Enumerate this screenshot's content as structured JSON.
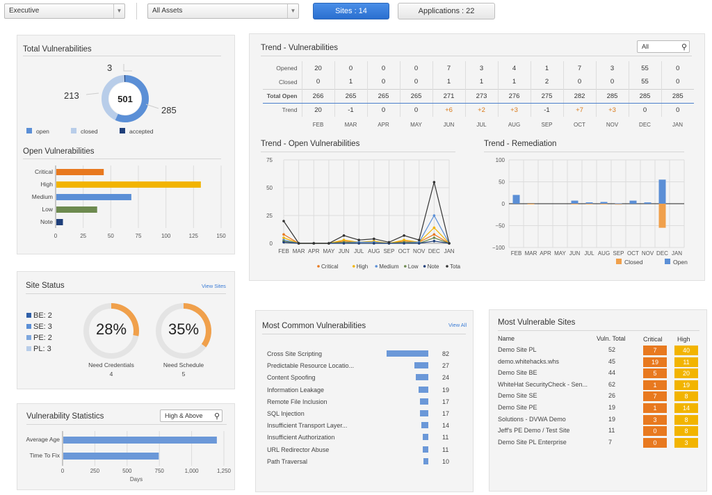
{
  "topbar": {
    "role_select": "Executive",
    "assets_select": "All Assets",
    "sites_button": "Sites : 14",
    "apps_button": "Applications : 22"
  },
  "total_vulns": {
    "title": "Total Vulnerabilities",
    "total": "501",
    "open": "285",
    "closed": "213",
    "accepted": "3",
    "legend": [
      "open",
      "closed",
      "accepted"
    ],
    "colors": {
      "open": "#5b8fd6",
      "closed": "#b8cde9",
      "accepted": "#1f3f7a"
    }
  },
  "open_vulns": {
    "title": "Open Vulnerabilities",
    "categories": [
      "Critical",
      "High",
      "Medium",
      "Low",
      "Note"
    ],
    "values": [
      43,
      131,
      68,
      37,
      6
    ],
    "colors": [
      "#e8791f",
      "#f2b400",
      "#5b8fd6",
      "#6d8a4f",
      "#1f3f7a"
    ],
    "ticks": [
      "0",
      "25",
      "50",
      "75",
      "100",
      "125",
      "150"
    ]
  },
  "site_status": {
    "title": "Site Status",
    "link": "View Sites",
    "items": [
      "BE: 2",
      "SE: 3",
      "PE: 2",
      "PL: 3"
    ],
    "item_colors": [
      "#2f5fa8",
      "#5b8fd6",
      "#7ea7de",
      "#b8cde9"
    ],
    "credentials": {
      "pct": "28%",
      "label": "Need Credentials",
      "count": "4",
      "value": 0.28
    },
    "schedule": {
      "pct": "35%",
      "label": "Need Schedule",
      "count": "5",
      "value": 0.35
    }
  },
  "vuln_stats": {
    "title": "Vulnerability Statistics",
    "filter": "High & Above",
    "categories": [
      "Average Age",
      "Time To Fix"
    ],
    "values": [
      1190,
      740
    ],
    "ticks": [
      "0",
      "250",
      "500",
      "750",
      "1,000",
      "1,250"
    ],
    "xlabel": "Days"
  },
  "trend_vulns": {
    "title": "Trend - Vulnerabilities",
    "filter": "All",
    "row_labels": [
      "Opened",
      "Closed",
      "Total Open",
      "Trend"
    ],
    "months": [
      "FEB",
      "MAR",
      "APR",
      "MAY",
      "JUN",
      "JUL",
      "AUG",
      "SEP",
      "OCT",
      "NOV",
      "DEC",
      "JAN"
    ],
    "opened": [
      "20",
      "0",
      "0",
      "0",
      "7",
      "3",
      "4",
      "1",
      "7",
      "3",
      "55",
      "0"
    ],
    "closed": [
      "0",
      "1",
      "0",
      "0",
      "1",
      "1",
      "1",
      "2",
      "0",
      "0",
      "55",
      "0"
    ],
    "total_open": [
      "266",
      "265",
      "265",
      "265",
      "271",
      "273",
      "276",
      "275",
      "282",
      "285",
      "285",
      "285"
    ],
    "trend": [
      "20",
      "-1",
      "0",
      "0",
      "+6",
      "+2",
      "+3",
      "-1",
      "+7",
      "+3",
      "0",
      "0"
    ]
  },
  "chart_data": [
    {
      "type": "line",
      "title": "Trend - Open Vulnerabilities",
      "x": [
        "FEB",
        "MAR",
        "APR",
        "MAY",
        "JUN",
        "JUL",
        "AUG",
        "SEP",
        "OCT",
        "NOV",
        "DEC",
        "JAN"
      ],
      "ylim": [
        0,
        75
      ],
      "yticks": [
        "0",
        "25",
        "50",
        "75"
      ],
      "series": [
        {
          "name": "Critical",
          "color": "#e8791f",
          "values": [
            8,
            0,
            0,
            0,
            2,
            1,
            1,
            0,
            2,
            1,
            8,
            0
          ]
        },
        {
          "name": "High",
          "color": "#f2b400",
          "values": [
            5,
            0,
            0,
            0,
            3,
            1,
            2,
            0,
            3,
            1,
            14,
            0
          ]
        },
        {
          "name": "Medium",
          "color": "#5b8fd6",
          "values": [
            3,
            0,
            0,
            0,
            1,
            1,
            1,
            0,
            1,
            1,
            25,
            0
          ]
        },
        {
          "name": "Low",
          "color": "#6d8a4f",
          "values": [
            2,
            0,
            0,
            0,
            1,
            0,
            0,
            0,
            1,
            0,
            5,
            0
          ]
        },
        {
          "name": "Note",
          "color": "#1f3f7a",
          "values": [
            1,
            0,
            0,
            0,
            0,
            0,
            0,
            0,
            0,
            0,
            2,
            0
          ]
        },
        {
          "name": "Total",
          "color": "#333333",
          "values": [
            20,
            0,
            0,
            0,
            7,
            3,
            4,
            1,
            7,
            3,
            55,
            0
          ]
        }
      ]
    },
    {
      "type": "bar",
      "title": "Trend - Remediation",
      "categories": [
        "FEB",
        "MAR",
        "APR",
        "MAY",
        "JUN",
        "JUL",
        "AUG",
        "SEP",
        "OCT",
        "NOV",
        "DEC",
        "JAN"
      ],
      "ylim": [
        -100,
        100
      ],
      "yticks": [
        "100",
        "50",
        "0",
        "−50",
        "−100"
      ],
      "series": [
        {
          "name": "Closed",
          "color": "#f0a04b",
          "values": [
            0,
            -1,
            0,
            0,
            -1,
            -1,
            -1,
            -2,
            0,
            0,
            -55,
            0
          ]
        },
        {
          "name": "Open",
          "color": "#5b8fd6",
          "values": [
            20,
            0,
            0,
            0,
            7,
            3,
            4,
            1,
            7,
            3,
            55,
            0
          ]
        }
      ]
    }
  ],
  "common_vulns": {
    "title": "Most Common Vulnerabilities",
    "link": "View All",
    "names": [
      "Cross Site Scripting",
      "Predictable Resource Locatio...",
      "Content Spoofing",
      "Information Leakage",
      "Remote File Inclusion",
      "SQL Injection",
      "Insufficient Transport Layer...",
      "Insufficient Authorization",
      "URL Redirector Abuse",
      "Path Traversal"
    ],
    "values": [
      82,
      27,
      24,
      19,
      17,
      17,
      14,
      11,
      11,
      10
    ],
    "labels": [
      "82",
      "27",
      "24",
      "19",
      "17",
      "17",
      "14",
      "11",
      "11",
      "10"
    ]
  },
  "vulnerable_sites": {
    "title": "Most Vulnerable Sites",
    "headers": [
      "Name",
      "Vuln. Total",
      "Critical",
      "High"
    ],
    "rows": [
      [
        "Demo Site PL",
        "52",
        "7",
        "40"
      ],
      [
        "demo.whitehacks.whs",
        "45",
        "19",
        "11"
      ],
      [
        "Demo Site BE",
        "44",
        "5",
        "20"
      ],
      [
        "WhiteHat SecurityCheck - Sen...",
        "62",
        "1",
        "19"
      ],
      [
        "Demo Site SE",
        "26",
        "7",
        "8"
      ],
      [
        "Demo Site PE",
        "19",
        "1",
        "14"
      ],
      [
        "Solutions - DVWA Demo",
        "19",
        "3",
        "8"
      ],
      [
        "Jeff's PE Demo / Test Site",
        "11",
        "0",
        "8"
      ],
      [
        "Demo Site PL Enterprise",
        "7",
        "0",
        "3"
      ]
    ]
  }
}
